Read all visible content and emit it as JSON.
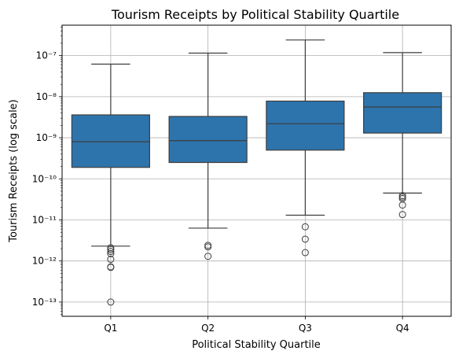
{
  "chart_data": {
    "type": "box",
    "title": "Tourism Receipts by Political Stability Quartile",
    "xlabel": "Political Stability Quartile",
    "ylabel": "Tourism Receipts (log scale)",
    "yscale": "log",
    "ylim": [
      4.5e-14,
      5.5e-07
    ],
    "y_ticks": [
      {
        "value": 1e-13,
        "label": "10⁻¹³"
      },
      {
        "value": 1e-12,
        "label": "10⁻¹²"
      },
      {
        "value": 1e-11,
        "label": "10⁻¹¹"
      },
      {
        "value": 1e-10,
        "label": "10⁻¹⁰"
      },
      {
        "value": 1e-09,
        "label": "10⁻⁹"
      },
      {
        "value": 1e-08,
        "label": "10⁻⁸"
      },
      {
        "value": 1e-07,
        "label": "10⁻⁷"
      }
    ],
    "grid": true,
    "box_color": "#2e74ac",
    "categories": [
      "Q1",
      "Q2",
      "Q3",
      "Q4"
    ],
    "boxes": [
      {
        "category": "Q1",
        "whisker_low": 2.3e-12,
        "q1": 1.9e-10,
        "median": 8e-10,
        "q3": 3.6e-09,
        "whisker_high": 6.2e-08,
        "outliers": [
          2.1e-12,
          1.9e-12,
          1.7e-12,
          1.5e-12,
          1.1e-12,
          7.2e-13,
          7e-13,
          1e-13
        ]
      },
      {
        "category": "Q2",
        "whisker_low": 6.3e-12,
        "q1": 2.5e-10,
        "median": 8.5e-10,
        "q3": 3.3e-09,
        "whisker_high": 1.15e-07,
        "outliers": [
          2.4e-12,
          2.2e-12,
          1.3e-12
        ]
      },
      {
        "category": "Q3",
        "whisker_low": 1.3e-11,
        "q1": 5e-10,
        "median": 2.2e-09,
        "q3": 7.8e-09,
        "whisker_high": 2.4e-07,
        "outliers": [
          6.8e-12,
          3.4e-12,
          1.6e-12
        ]
      },
      {
        "category": "Q4",
        "whisker_low": 4.5e-11,
        "q1": 1.3e-09,
        "median": 5.6e-09,
        "q3": 1.25e-08,
        "whisker_high": 1.18e-07,
        "outliers": [
          3.9e-11,
          3.6e-11,
          3.3e-11,
          2.3e-11,
          1.35e-11
        ]
      }
    ]
  }
}
